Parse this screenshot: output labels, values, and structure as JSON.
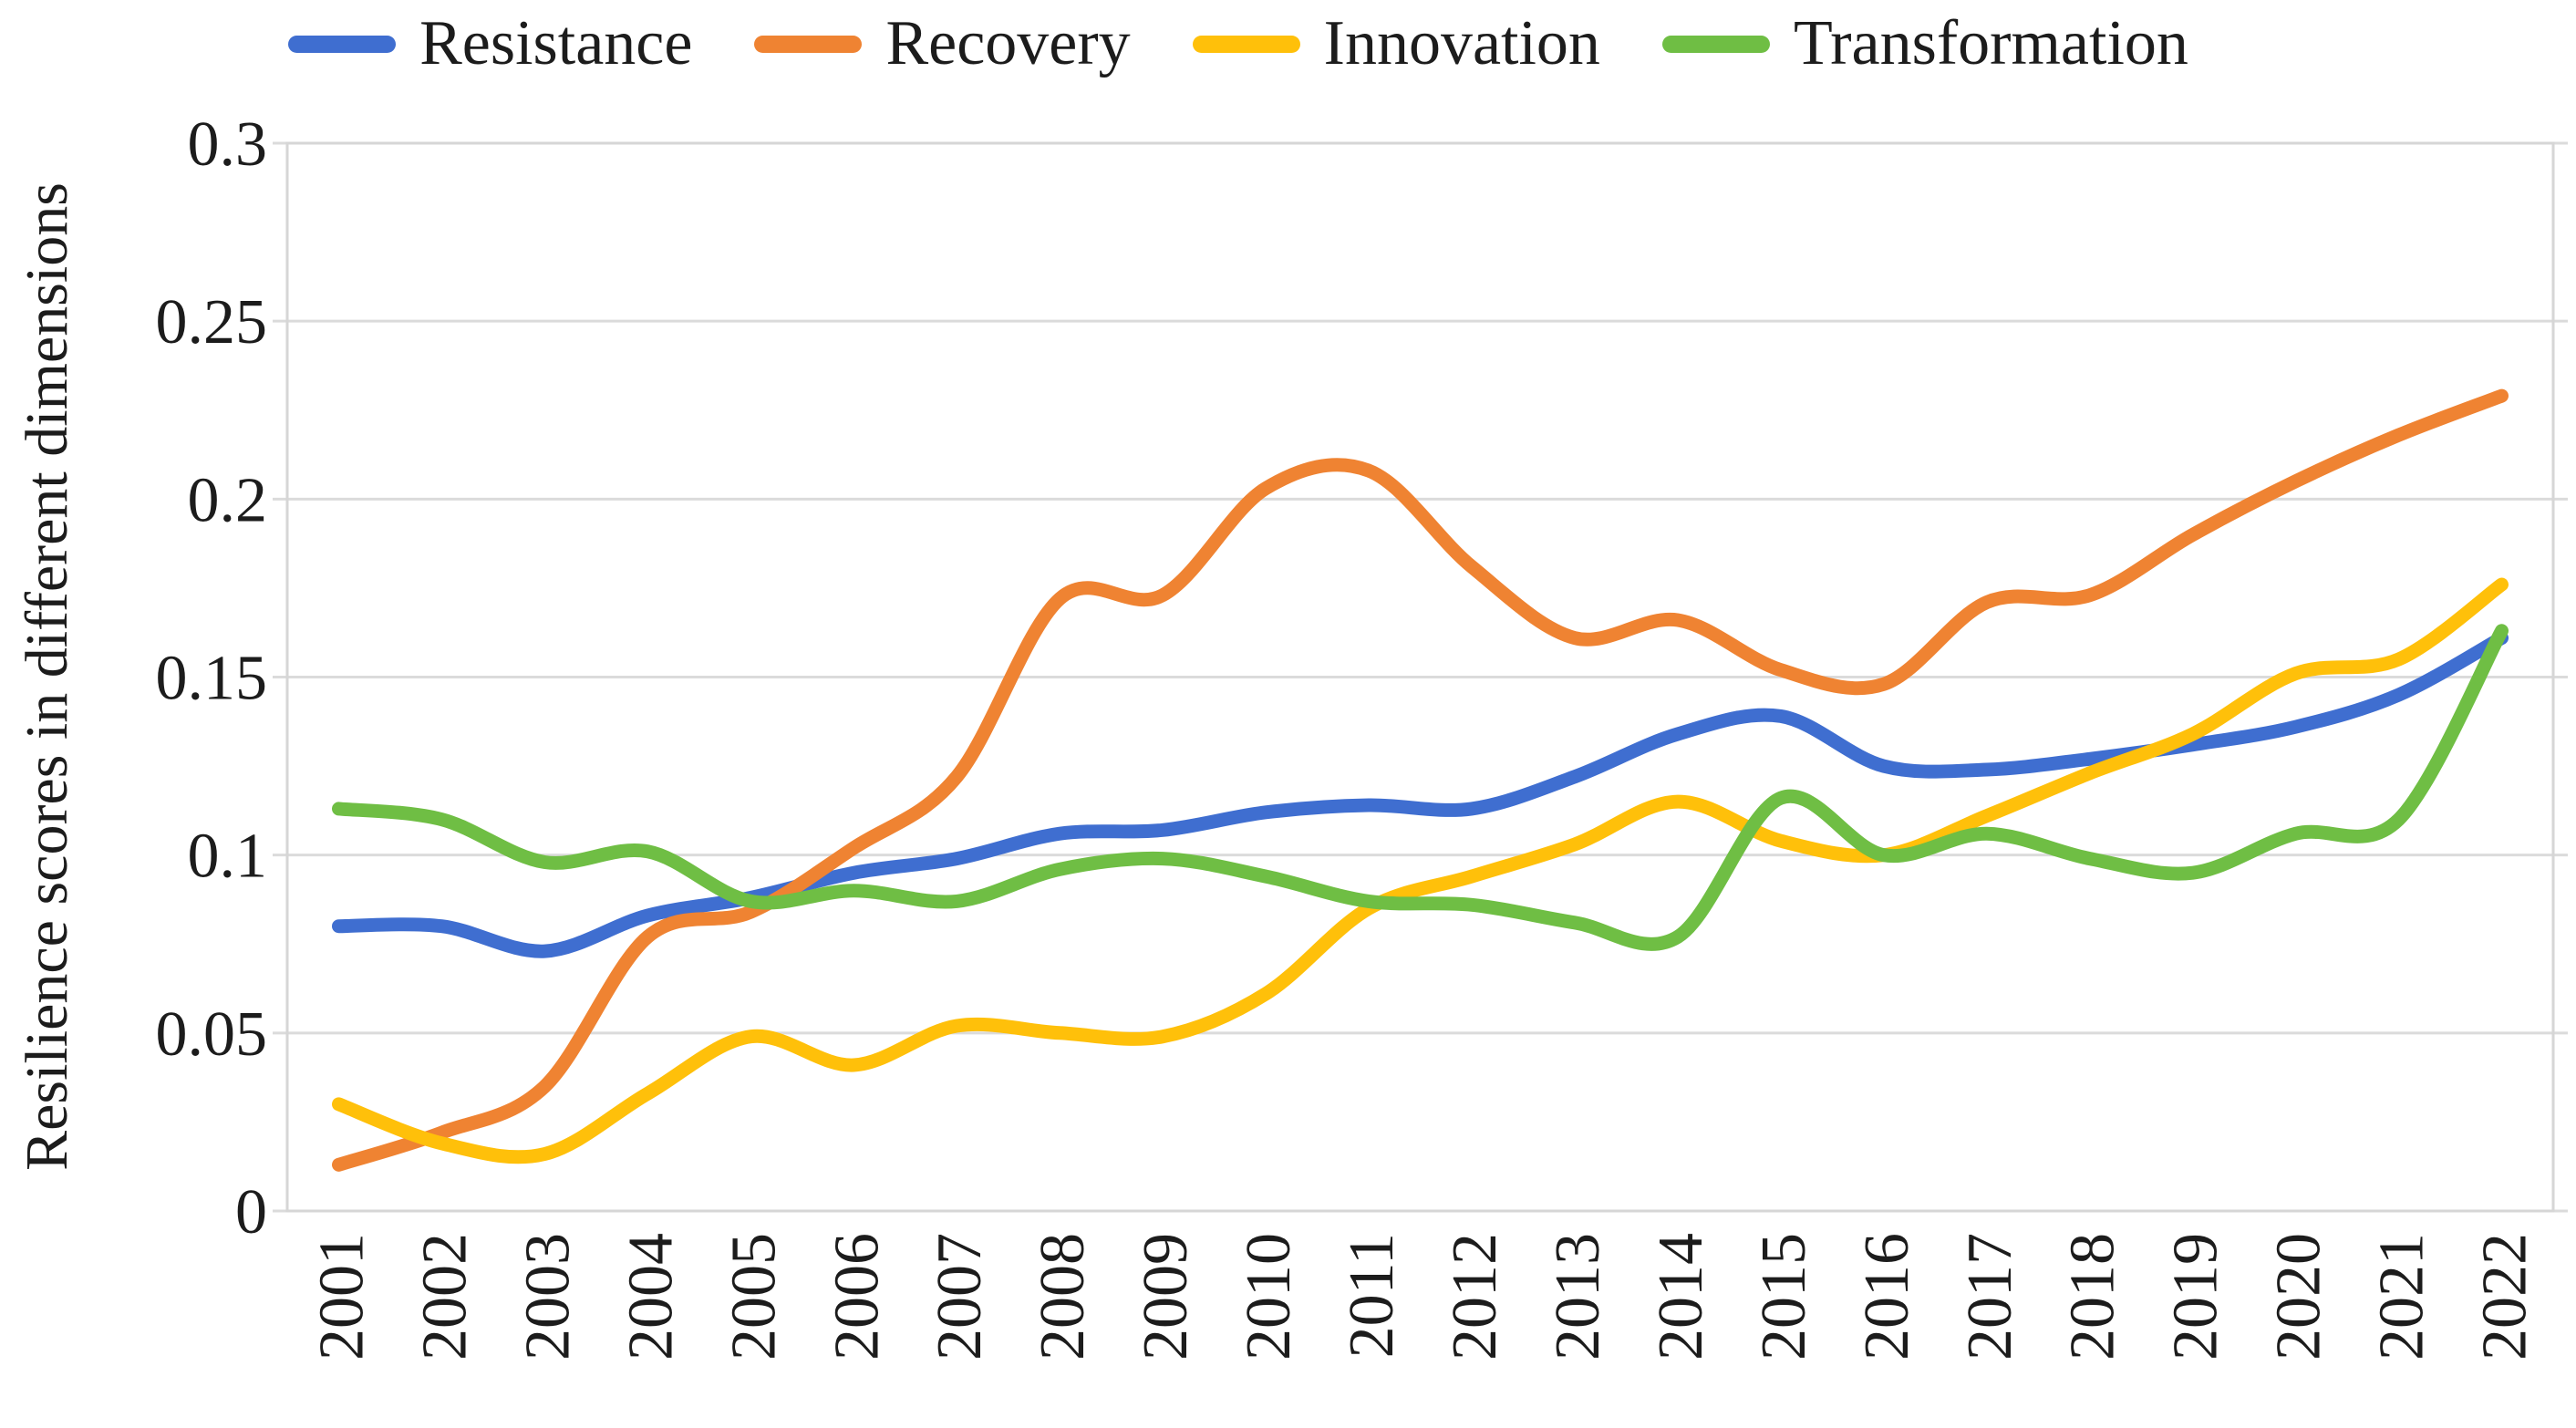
{
  "chart_data": {
    "type": "line",
    "title": "",
    "xlabel": "",
    "ylabel": "Resilience scores in different dimensions",
    "ylim": [
      0,
      0.3
    ],
    "grid": true,
    "grid_color": "#dbdbdb",
    "frame_color": "#d6d6d6",
    "legend_position": "top",
    "smooth": true,
    "x": [
      "2001",
      "2002",
      "2003",
      "2004",
      "2005",
      "2006",
      "2007",
      "2008",
      "2009",
      "2010",
      "2011",
      "2012",
      "2013",
      "2014",
      "2015",
      "2016",
      "2017",
      "2018",
      "2019",
      "2020",
      "2021",
      "2022"
    ],
    "y_ticks": [
      "0",
      "0.05",
      "0.1",
      "0.15",
      "0.2",
      "0.25",
      "0.3"
    ],
    "series": [
      {
        "name": "Resistance",
        "color": "#3f6ed0",
        "values": [
          0.08,
          0.08,
          0.073,
          0.083,
          0.088,
          0.095,
          0.099,
          0.106,
          0.107,
          0.112,
          0.114,
          0.113,
          0.122,
          0.134,
          0.139,
          0.125,
          0.124,
          0.127,
          0.131,
          0.136,
          0.145,
          0.161
        ]
      },
      {
        "name": "Recovery",
        "color": "#ef8332",
        "values": [
          0.013,
          0.022,
          0.035,
          0.077,
          0.084,
          0.102,
          0.122,
          0.172,
          0.173,
          0.203,
          0.208,
          0.181,
          0.161,
          0.166,
          0.152,
          0.148,
          0.171,
          0.173,
          0.19,
          0.205,
          0.218,
          0.229
        ]
      },
      {
        "name": "Innovation",
        "color": "#ffc00a",
        "values": [
          0.03,
          0.019,
          0.016,
          0.033,
          0.049,
          0.041,
          0.052,
          0.05,
          0.049,
          0.061,
          0.085,
          0.094,
          0.103,
          0.115,
          0.104,
          0.1,
          0.111,
          0.123,
          0.134,
          0.151,
          0.155,
          0.176
        ]
      },
      {
        "name": "Transformation",
        "color": "#6fbe44",
        "values": [
          0.113,
          0.11,
          0.098,
          0.101,
          0.087,
          0.09,
          0.087,
          0.096,
          0.099,
          0.094,
          0.087,
          0.086,
          0.081,
          0.077,
          0.116,
          0.1,
          0.106,
          0.099,
          0.095,
          0.106,
          0.11,
          0.163
        ]
      }
    ]
  }
}
